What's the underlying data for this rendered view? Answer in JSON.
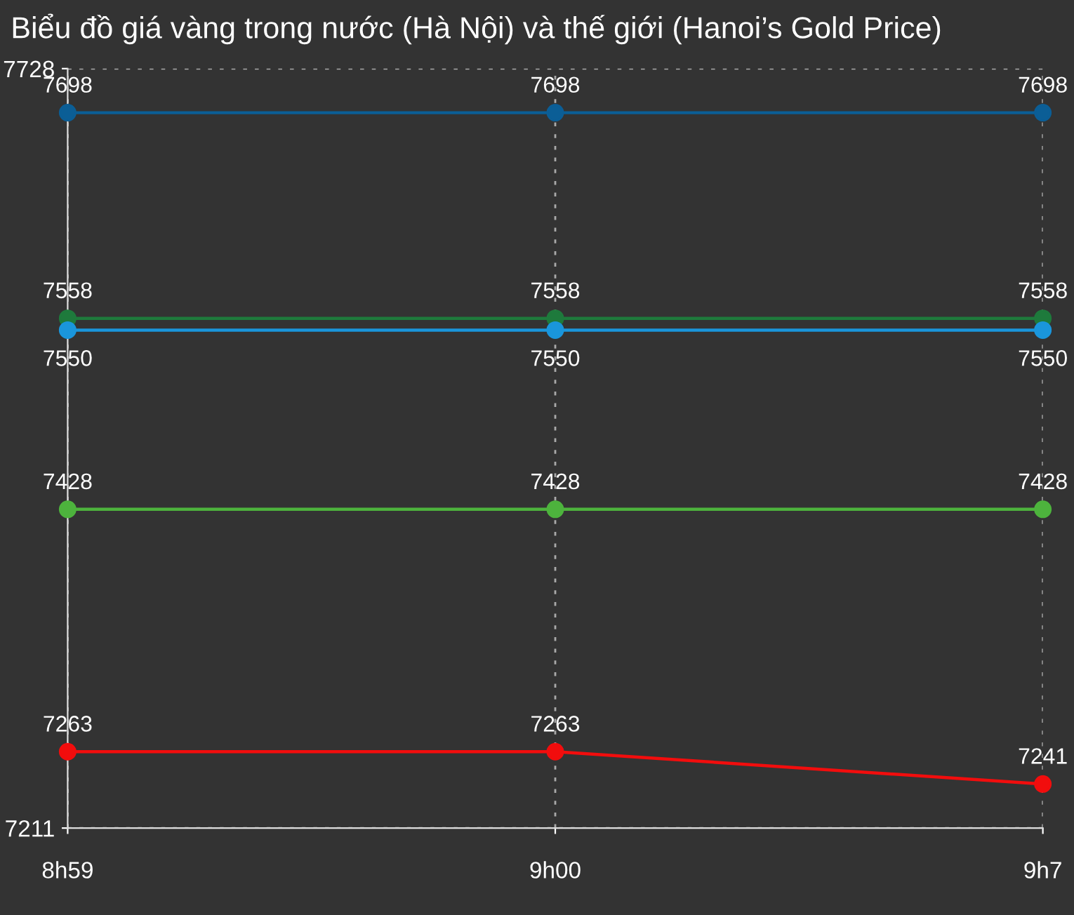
{
  "chart_data": {
    "type": "line",
    "title": "Biểu đồ giá vàng trong nước (Hà Nội) và thế giới (Hanoi’s Gold Price)",
    "categories": [
      "8h59",
      "9h00",
      "9h7"
    ],
    "series": [
      {
        "color": "#0b5e96",
        "values": [
          7698,
          7698,
          7698
        ]
      },
      {
        "color": "#1e7a3c",
        "values": [
          7558,
          7558,
          7558
        ]
      },
      {
        "color": "#1a96dc",
        "values": [
          7550,
          7550,
          7550
        ]
      },
      {
        "color": "#4db33d",
        "values": [
          7428,
          7428,
          7428
        ]
      },
      {
        "color": "#f20d0d",
        "values": [
          7263,
          7263,
          7241
        ]
      }
    ],
    "ylim": [
      7211,
      7728
    ],
    "yticks": [
      7211,
      7728
    ],
    "grid": true,
    "marker": "circle",
    "line_style": "solid",
    "data_labels": true
  }
}
